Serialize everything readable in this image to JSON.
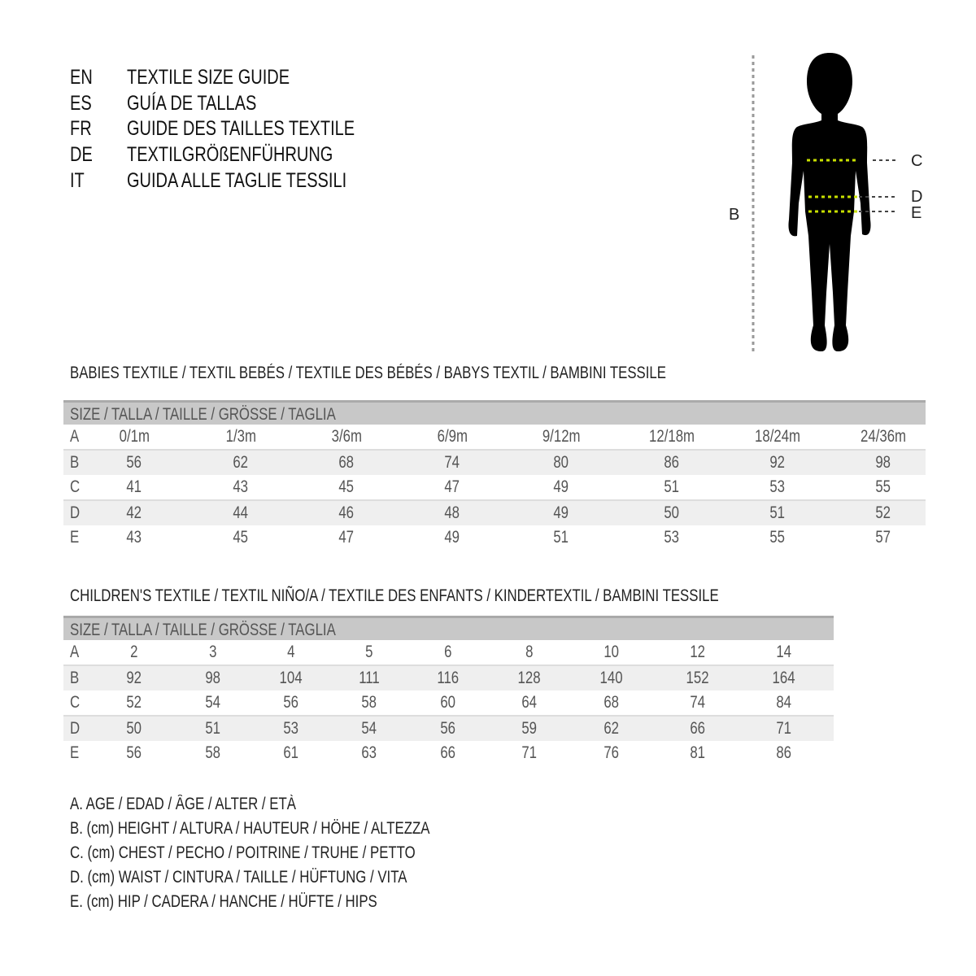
{
  "titles": [
    {
      "code": "EN",
      "text": "TEXTILE SIZE GUIDE"
    },
    {
      "code": "ES",
      "text": "GUÍA DE TALLAS"
    },
    {
      "code": "FR",
      "text": "GUIDE DES TAILLES TEXTILE"
    },
    {
      "code": "DE",
      "text": "TEXTILGRÖßENFÜHRUNG"
    },
    {
      "code": "IT",
      "text": "GUIDA ALLE TAGLIE TESSILI"
    }
  ],
  "figure": {
    "labels": {
      "B": "B",
      "C": "C",
      "D": "D",
      "E": "E"
    },
    "measure_color": "#c8e000"
  },
  "babies": {
    "heading": "BABIES TEXTILE / TEXTIL BEBÉS / TEXTILE DES BÉBÉS / BABYS TEXTIL  / BAMBINI TESSILE",
    "size_header": "SIZE / TALLA / TAILLE / GRÖSSE / TAGLIA",
    "rows": [
      {
        "label": "A",
        "values": [
          "0/1m",
          "1/3m",
          "3/6m",
          "6/9m",
          "9/12m",
          "12/18m",
          "18/24m",
          "24/36m"
        ]
      },
      {
        "label": "B",
        "values": [
          "56",
          "62",
          "68",
          "74",
          "80",
          "86",
          "92",
          "98"
        ]
      },
      {
        "label": "C",
        "values": [
          "41",
          "43",
          "45",
          "47",
          "49",
          "51",
          "53",
          "55"
        ]
      },
      {
        "label": "D",
        "values": [
          "42",
          "44",
          "46",
          "48",
          "49",
          "50",
          "51",
          "52"
        ]
      },
      {
        "label": "E",
        "values": [
          "43",
          "45",
          "47",
          "49",
          "51",
          "53",
          "55",
          "57"
        ]
      }
    ]
  },
  "children": {
    "heading": "CHILDREN'S TEXTILE / TEXTIL NIÑO/A / TEXTILE DES ENFANTS / KINDERTEXTIL / BAMBINI TESSILE",
    "size_header": "SIZE / TALLA / TAILLE / GRÖSSE / TAGLIA",
    "rows": [
      {
        "label": "A",
        "values": [
          "2",
          "3",
          "4",
          "5",
          "6",
          "8",
          "10",
          "12",
          "14"
        ]
      },
      {
        "label": "B",
        "values": [
          "92",
          "98",
          "104",
          "111",
          "116",
          "128",
          "140",
          "152",
          "164"
        ]
      },
      {
        "label": "C",
        "values": [
          "52",
          "54",
          "56",
          "58",
          "60",
          "64",
          "68",
          "74",
          "84"
        ]
      },
      {
        "label": "D",
        "values": [
          "50",
          "51",
          "53",
          "54",
          "56",
          "59",
          "62",
          "66",
          "71"
        ]
      },
      {
        "label": "E",
        "values": [
          "56",
          "58",
          "61",
          "63",
          "66",
          "71",
          "76",
          "81",
          "86"
        ]
      }
    ]
  },
  "legend": [
    "A. AGE / EDAD / ÂGE / ALTER / ETÀ",
    "B. (cm) HEIGHT / ALTURA / HAUTEUR / HÖHE / ALTEZZA",
    "C. (cm) CHEST / PECHO / POITRINE / TRUHE / PETTO",
    "D. (cm) WAIST / CINTURA / TAILLE / HÜFTUNG / VITA",
    "E. (cm) HIP / CADERA / HANCHE / HÜFTE / HIPS"
  ]
}
